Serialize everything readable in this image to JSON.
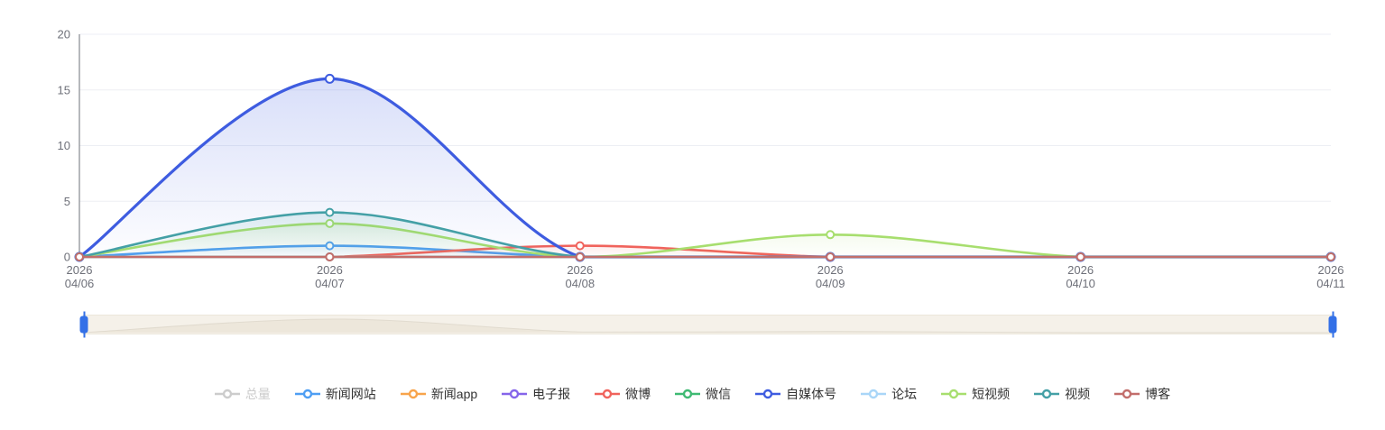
{
  "chart_data": {
    "type": "line",
    "title": "",
    "xlabel": "",
    "ylabel": "",
    "ylim": [
      0,
      20
    ],
    "y_ticks": [
      0,
      5,
      10,
      15,
      20
    ],
    "grid": true,
    "legend_position": "bottom",
    "x_labels": [
      {
        "year": "2026",
        "date": "04/06"
      },
      {
        "year": "2026",
        "date": "04/07"
      },
      {
        "year": "2026",
        "date": "04/08"
      },
      {
        "year": "2026",
        "date": "04/09"
      },
      {
        "year": "2026",
        "date": "04/10"
      },
      {
        "year": "2026",
        "date": "04/11"
      }
    ],
    "series": [
      {
        "name": "总量",
        "color": "#c8c8c8",
        "disabled": true,
        "values": []
      },
      {
        "name": "新闻网站",
        "color": "#4E9EF3",
        "disabled": false,
        "values": [
          0,
          1,
          0,
          0,
          0,
          0
        ]
      },
      {
        "name": "新闻app",
        "color": "#F8A44B",
        "disabled": false,
        "values": [
          0,
          0,
          0,
          0,
          0,
          0
        ]
      },
      {
        "name": "电子报",
        "color": "#8565EA",
        "disabled": false,
        "values": [
          0,
          0,
          0,
          0,
          0,
          0
        ]
      },
      {
        "name": "微博",
        "color": "#F0635C",
        "disabled": false,
        "values": [
          0,
          0,
          1,
          0,
          0,
          0
        ]
      },
      {
        "name": "微信",
        "color": "#3FBA73",
        "disabled": false,
        "values": [
          0,
          0,
          0,
          0,
          0,
          0
        ]
      },
      {
        "name": "自媒体号",
        "color": "#3E5CE0",
        "disabled": false,
        "values": [
          0,
          16,
          0,
          0,
          0,
          0
        ],
        "line_width": 3.2
      },
      {
        "name": "论坛",
        "color": "#A9D6F8",
        "disabled": false,
        "values": [
          0,
          0,
          0,
          0,
          0,
          0
        ]
      },
      {
        "name": "短视频",
        "color": "#A7DE6E",
        "disabled": false,
        "values": [
          0,
          3,
          0,
          2,
          0,
          0
        ]
      },
      {
        "name": "视频",
        "color": "#44A0A6",
        "disabled": false,
        "values": [
          0,
          4,
          0,
          0,
          0,
          0
        ]
      },
      {
        "name": "博客",
        "color": "#C26E6B",
        "disabled": false,
        "values": [
          0,
          0,
          0,
          0,
          0,
          0
        ]
      }
    ]
  },
  "datazoom": {
    "handle_color": "#3370E7",
    "track_color": "#F5F1E9",
    "shadow_line_color": "#E1DBCF",
    "shadow_fill_color": "#EDE7DB"
  },
  "colors": {
    "axis_text": "#6E7079",
    "axis_line": "#6E7079",
    "gridline": "#EDEFF4",
    "legend_text": "#333333",
    "legend_disabled": "#cccccc"
  }
}
